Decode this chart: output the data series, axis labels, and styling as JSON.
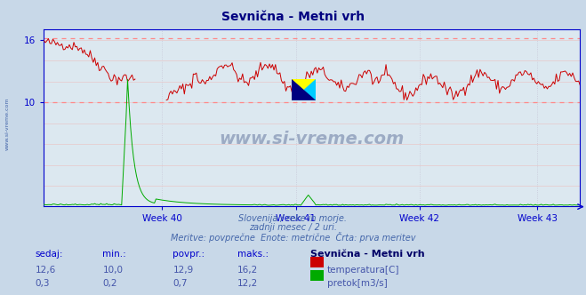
{
  "title": "Sevnična - Metni vrh",
  "title_color": "#000080",
  "bg_color": "#c8d8e8",
  "plot_bg_color": "#dce8f0",
  "x_weeks": [
    "Week 40",
    "Week 41",
    "Week 42",
    "Week 43"
  ],
  "ylim": [
    0,
    17
  ],
  "temp_color": "#cc0000",
  "flow_color": "#00aa00",
  "dashed_line_color": "#ff8888",
  "dashed_line_max": 16.2,
  "dashed_line_min": 10.0,
  "grid_color": "#e8c8c8",
  "vgrid_color": "#c8c8d8",
  "axis_color": "#0000cc",
  "watermark_text": "www.si-vreme.com",
  "watermark_color": "#0a2060",
  "subtitle1": "Slovenija / reke in morje.",
  "subtitle2": "zadnji mesec / 2 uri.",
  "subtitle3": "Meritve: povprečne  Enote: metrične  Črta: prva meritev",
  "subtitle_color": "#4466aa",
  "table_headers": [
    "sedaj:",
    "min.:",
    "povpr.:",
    "maks.:",
    "Sevnična - Metni vrh"
  ],
  "row1_vals": [
    "12,6",
    "10,0",
    "12,9",
    "16,2"
  ],
  "row2_vals": [
    "0,3",
    "0,2",
    "0,7",
    "12,2"
  ],
  "legend1": "temperatura[C]",
  "legend2": "pretok[m3/s]",
  "logo_colors": [
    "#ffff00",
    "#00ccff",
    "#000080"
  ],
  "n_points": 360,
  "left_label": "www.si-vreme.com"
}
